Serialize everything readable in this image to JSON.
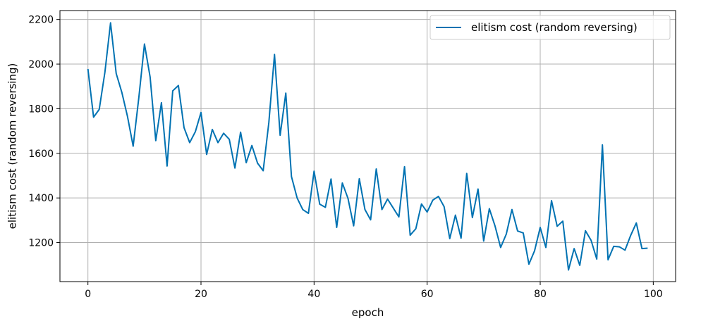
{
  "chart_data": {
    "type": "line",
    "title": "",
    "xlabel": "epoch",
    "ylabel": "elitism cost (random reversing)",
    "xlim": [
      -4.95,
      103.95
    ],
    "ylim": [
      1025,
      2240
    ],
    "xticks": [
      0,
      20,
      40,
      60,
      80,
      100
    ],
    "yticks": [
      1200,
      1400,
      1600,
      1800,
      2000,
      2200
    ],
    "grid": true,
    "legend_position": "top-right",
    "series": [
      {
        "name": "elitism cost (random reversing)",
        "color": "#0072b2",
        "x": [
          0,
          1,
          2,
          3,
          4,
          5,
          6,
          7,
          8,
          9,
          10,
          11,
          12,
          13,
          14,
          15,
          16,
          17,
          18,
          19,
          20,
          21,
          22,
          23,
          24,
          25,
          26,
          27,
          28,
          29,
          30,
          31,
          32,
          33,
          34,
          35,
          36,
          37,
          38,
          39,
          40,
          41,
          42,
          43,
          44,
          45,
          46,
          47,
          48,
          49,
          50,
          51,
          52,
          53,
          54,
          55,
          56,
          57,
          58,
          59,
          60,
          61,
          62,
          63,
          64,
          65,
          66,
          67,
          68,
          69,
          70,
          71,
          72,
          73,
          74,
          75,
          76,
          77,
          78,
          79,
          80,
          81,
          82,
          83,
          84,
          85,
          86,
          87,
          88,
          89,
          90,
          91,
          92,
          93,
          94,
          95,
          96,
          97,
          98,
          99
        ],
        "values": [
          1978,
          1762,
          1797,
          1963,
          2185,
          1958,
          1873,
          1765,
          1632,
          1849,
          2090,
          1942,
          1657,
          1827,
          1543,
          1880,
          1904,
          1715,
          1648,
          1697,
          1783,
          1595,
          1707,
          1648,
          1690,
          1663,
          1534,
          1695,
          1558,
          1635,
          1556,
          1522,
          1738,
          2043,
          1681,
          1870,
          1496,
          1400,
          1348,
          1331,
          1520,
          1372,
          1358,
          1485,
          1268,
          1467,
          1398,
          1275,
          1486,
          1348,
          1302,
          1530,
          1348,
          1395,
          1355,
          1315,
          1540,
          1233,
          1262,
          1373,
          1337,
          1390,
          1407,
          1361,
          1218,
          1323,
          1220,
          1510,
          1312,
          1440,
          1207,
          1352,
          1275,
          1178,
          1238,
          1348,
          1252,
          1243,
          1103,
          1163,
          1268,
          1178,
          1388,
          1273,
          1296,
          1077,
          1173,
          1098,
          1253,
          1210,
          1126,
          1638,
          1123,
          1183,
          1181,
          1166,
          1232,
          1288,
          1173,
          1175
        ]
      }
    ]
  }
}
